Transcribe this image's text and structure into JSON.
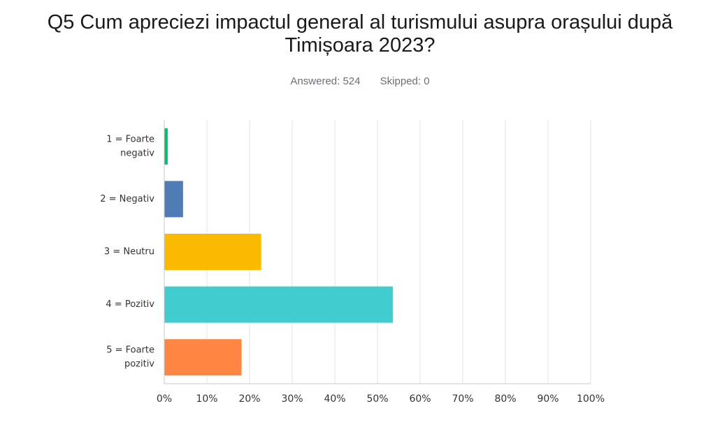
{
  "question": {
    "title_line1": "Q5 Cum apreciezi impactul general al turismului asupra orașului după",
    "title_line2": "Timișoara 2023?",
    "answered_label": "Answered:",
    "answered_value": "524",
    "skipped_label": "Skipped:",
    "skipped_value": "0"
  },
  "chart_data": {
    "type": "bar",
    "orientation": "horizontal",
    "title": "Q5 Cum apreciezi impactul general al turismului asupra orașului după Timișoara 2023?",
    "categories": [
      [
        "1 = Foarte",
        "negativ"
      ],
      [
        "2 = Negativ"
      ],
      [
        "3 = Neutru"
      ],
      [
        "4 = Pozitiv"
      ],
      [
        "5 = Foarte",
        "pozitiv"
      ]
    ],
    "values": [
      0.8,
      4.4,
      22.7,
      53.6,
      18.1
    ],
    "colors": [
      "#00bf6f",
      "#507cb6",
      "#fbba00",
      "#41ccd0",
      "#ff8642"
    ],
    "xlim": [
      0,
      100
    ],
    "xticks": [
      0,
      10,
      20,
      30,
      40,
      50,
      60,
      70,
      80,
      90,
      100
    ],
    "xtick_suffix": "%",
    "xlabel": "",
    "ylabel": "",
    "grid": true,
    "legend": "none"
  }
}
